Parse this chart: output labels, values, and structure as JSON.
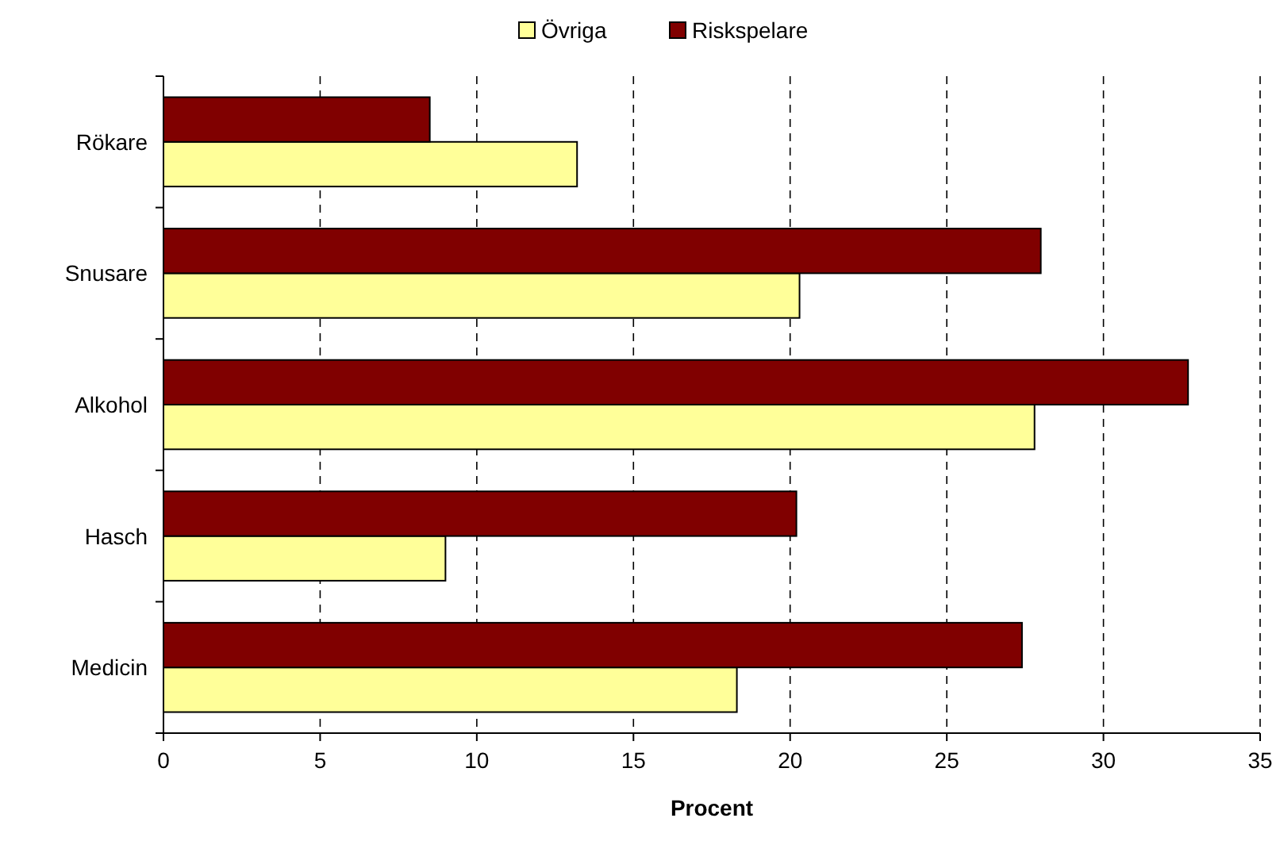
{
  "chart_data": {
    "type": "bar",
    "orientation": "horizontal",
    "xlabel": "Procent",
    "categories": [
      "Rökare",
      "Snusare",
      "Alkohol",
      "Hasch",
      "Medicin"
    ],
    "series": [
      {
        "name": "Övriga",
        "color": "#ffff99",
        "values": [
          13.2,
          20.3,
          27.8,
          9.0,
          18.3
        ]
      },
      {
        "name": "Riskspelare",
        "color": "#800000",
        "values": [
          8.5,
          28.0,
          32.7,
          20.2,
          27.4
        ]
      }
    ],
    "xlim": [
      0,
      35
    ],
    "xticks": [
      0,
      5,
      10,
      15,
      20,
      25,
      30,
      35
    ],
    "grid": "x",
    "legend": "top"
  }
}
